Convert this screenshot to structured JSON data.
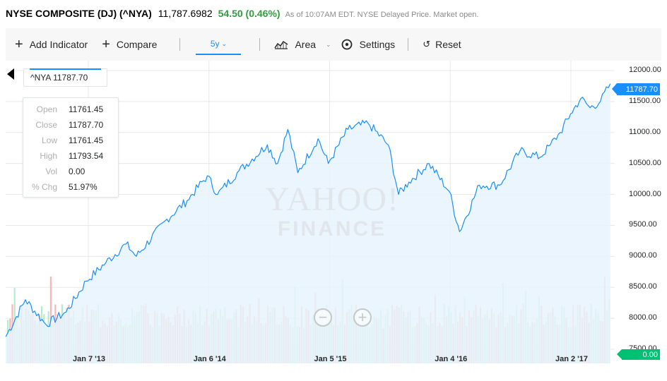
{
  "header": {
    "name": "NYSE COMPOSITE (DJ) (^NYA)",
    "price": "11,787.6982",
    "change": "54.50 (0.46%)",
    "status": "As of 10:07AM EDT. NYSE Delayed Price. Market open."
  },
  "toolbar": {
    "add_indicator": "Add Indicator",
    "compare": "Compare",
    "range": "5y",
    "chart_type": "Area",
    "settings": "Settings",
    "reset": "Reset"
  },
  "series_tag": "^NYA 11787.70",
  "tooltip": [
    {
      "key": "Open",
      "value": "11761.45"
    },
    {
      "key": "Close",
      "value": "11787.70"
    },
    {
      "key": "Low",
      "value": "11761.45"
    },
    {
      "key": "High",
      "value": "11793.54"
    },
    {
      "key": "Vol",
      "value": "0.00"
    },
    {
      "key": "% Chg",
      "value": "51.97%"
    }
  ],
  "watermark": {
    "line1": "YAHOO!",
    "line2": "FINANCE"
  },
  "price_flag": "11787.70",
  "volume_flag": "0.00",
  "colors": {
    "accent": "#188fff",
    "up": "#2e9e3f",
    "volume_up": "#a8e6c4",
    "volume_down": "#f7a9ae",
    "area_fill": "#e8f3fd",
    "volume_flag": "#00c073"
  },
  "icons": {
    "add": "plus-icon",
    "compare": "plus-icon",
    "area": "area-chart-icon",
    "settings": "gear-icon",
    "reset": "reset-icon",
    "zoom_out": "zoom-out-icon",
    "zoom_in": "zoom-in-icon",
    "back": "back-arrow-icon"
  },
  "chart_data": {
    "type": "area",
    "title": "",
    "xlabel": "",
    "ylabel": "",
    "x_tick_labels": [
      "Jan 7 '13",
      "Jan 6 '14",
      "Jan 5 '15",
      "Jan 4 '16",
      "Jan 2 '17"
    ],
    "y_tick_labels": [
      "12000.00",
      "11500.00",
      "11000.00",
      "10500.00",
      "10000.00",
      "9500.00",
      "9000.00",
      "8500.00",
      "8000.00",
      "7500.00"
    ],
    "ylim": [
      7500,
      12000
    ],
    "grid": true,
    "series": [
      {
        "x": [
          "2012-04",
          "2012-07",
          "2012-09",
          "2012-11",
          "2013-01",
          "2013-03",
          "2013-05",
          "2013-06",
          "2013-09",
          "2013-11",
          "2014-01",
          "2014-02",
          "2014-04",
          "2014-07",
          "2014-08",
          "2014-09",
          "2014-10",
          "2014-12",
          "2015-01",
          "2015-03",
          "2015-05",
          "2015-07",
          "2015-08",
          "2015-09",
          "2015-11",
          "2016-01",
          "2016-02",
          "2016-04",
          "2016-06",
          "2016-08",
          "2016-10",
          "2016-11",
          "2016-12",
          "2017-01",
          "2017-02",
          "2017-03",
          "2017-04",
          "2017-05"
        ],
        "y": [
          7700,
          8300,
          7900,
          8100,
          8600,
          8900,
          9200,
          9000,
          9600,
          9900,
          10300,
          10000,
          10350,
          10800,
          10500,
          11050,
          10350,
          10900,
          10500,
          11050,
          11150,
          10800,
          10000,
          10200,
          10500,
          10050,
          9400,
          10150,
          10150,
          10700,
          10600,
          10800,
          11000,
          11300,
          11550,
          11400,
          11500,
          11787.7
        ]
      }
    ]
  }
}
